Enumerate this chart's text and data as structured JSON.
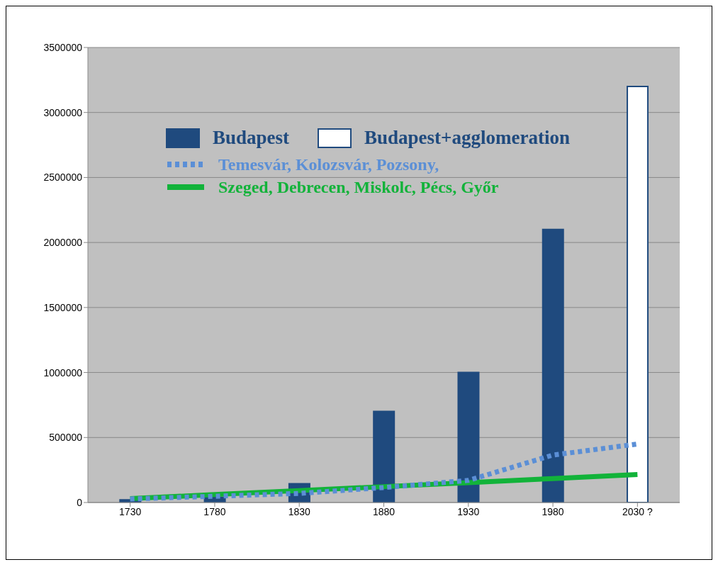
{
  "chart_data": {
    "type": "bar",
    "categories": [
      "1730",
      "1780",
      "1830",
      "1880",
      "1930",
      "1980",
      "2030 ?"
    ],
    "series": [
      {
        "name": "Budapest",
        "color": "#1f4a7e",
        "values": [
          20000,
          40000,
          145000,
          700000,
          1000000,
          2100000,
          null
        ]
      },
      {
        "name": "Budapest+agglomeration",
        "color": "#ffffff",
        "values": [
          null,
          null,
          null,
          null,
          null,
          null,
          3200000
        ]
      },
      {
        "name": "Temesvár, Kolozsvár, Pozsony,",
        "type": "line",
        "line_style": "dotted",
        "color": "#5b8fd6",
        "values": [
          27000,
          48000,
          70000,
          115000,
          170000,
          365000,
          450000
        ]
      },
      {
        "name": "Szeged, Debrecen, Miskolc, Pécs, Győr",
        "type": "line",
        "line_style": "solid",
        "color": "#12b33a",
        "values": [
          30000,
          61000,
          92000,
          122000,
          153000,
          184000,
          215000
        ]
      }
    ],
    "ylim": [
      0,
      3500000
    ],
    "yticks": [
      0,
      500000,
      1000000,
      1500000,
      2000000,
      2500000,
      3000000,
      3500000
    ],
    "grid": "y",
    "legend": "top",
    "marker": "none"
  }
}
